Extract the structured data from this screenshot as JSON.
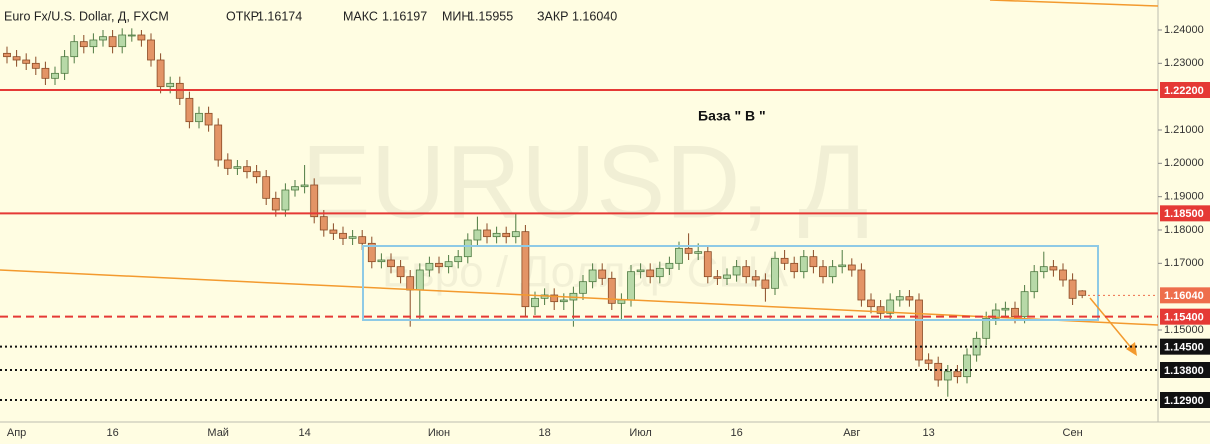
{
  "chart_data": {
    "type": "candlestick",
    "title": "Euro Fx/U.S. Dollar, Д, FXCM",
    "ohlc_header": [
      {
        "label": "ОТКР",
        "value": "1.16174"
      },
      {
        "label": "МАКС",
        "value": "1.16197"
      },
      {
        "label": "МИН",
        "value": "1.15955"
      },
      {
        "label": "ЗАКР",
        "value": "1.16040"
      }
    ],
    "watermark": "EURUSD, Д",
    "watermark_subtitle": "Евро / Доллар США",
    "annotation": "База \" В \"",
    "categories": [
      null,
      "Апр",
      null,
      null,
      null,
      null,
      null,
      null,
      null,
      null,
      null,
      "16",
      null,
      null,
      null,
      null,
      null,
      null,
      null,
      null,
      null,
      null,
      "Май",
      null,
      null,
      null,
      null,
      null,
      null,
      null,
      null,
      "14",
      null,
      null,
      null,
      null,
      null,
      null,
      null,
      null,
      null,
      null,
      null,
      null,
      null,
      "Июн",
      null,
      null,
      null,
      null,
      null,
      null,
      null,
      null,
      null,
      null,
      "18",
      null,
      null,
      null,
      null,
      null,
      null,
      null,
      null,
      null,
      "Июл",
      null,
      null,
      null,
      null,
      null,
      null,
      null,
      null,
      null,
      "16",
      null,
      null,
      null,
      null,
      null,
      null,
      null,
      null,
      null,
      null,
      null,
      "Авг",
      null,
      null,
      null,
      null,
      null,
      null,
      null,
      "13",
      null,
      null,
      null,
      null,
      null,
      null,
      null,
      null,
      null,
      null,
      null,
      null,
      null,
      null,
      "Сен",
      null
    ],
    "open": [
      1.233,
      1.232,
      1.231,
      1.23,
      1.2285,
      1.2255,
      1.227,
      1.232,
      1.2365,
      1.235,
      1.237,
      1.238,
      1.235,
      1.2385,
      1.2385,
      1.237,
      1.231,
      1.223,
      1.224,
      1.2195,
      1.2125,
      1.215,
      1.2115,
      1.201,
      1.1985,
      1.199,
      1.1975,
      1.196,
      1.1895,
      1.186,
      1.192,
      1.193,
      1.1935,
      1.184,
      1.18,
      1.179,
      1.1775,
      1.178,
      1.176,
      1.1705,
      1.171,
      1.169,
      1.166,
      1.162,
      1.168,
      1.17,
      1.169,
      1.1705,
      1.172,
      1.177,
      1.18,
      1.178,
      1.179,
      1.178,
      1.1795,
      1.157,
      1.1595,
      1.1605,
      1.1585,
      1.159,
      1.161,
      1.1645,
      1.168,
      1.1655,
      1.158,
      1.159,
      1.1675,
      1.168,
      1.166,
      1.1685,
      1.17,
      1.1745,
      1.173,
      1.1735,
      1.166,
      1.1655,
      1.1665,
      1.169,
      1.166,
      1.165,
      1.1625,
      1.1715,
      1.17,
      1.1675,
      1.172,
      1.169,
      1.166,
      1.169,
      1.1695,
      1.168,
      1.159,
      1.157,
      1.155,
      1.159,
      1.16,
      1.159,
      1.141,
      1.14,
      1.135,
      1.1375,
      1.136,
      1.1425,
      1.1475,
      1.1535,
      1.156,
      1.1565,
      1.154,
      1.1615,
      1.1675,
      1.169,
      1.168,
      1.165,
      1.16174
    ],
    "high": [
      1.235,
      1.234,
      1.233,
      1.232,
      1.2305,
      1.229,
      1.234,
      1.2385,
      1.2385,
      1.239,
      1.24,
      1.24,
      1.2405,
      1.2405,
      1.24,
      1.239,
      1.233,
      1.226,
      1.226,
      1.2215,
      1.217,
      1.217,
      1.2135,
      1.203,
      1.201,
      1.201,
      1.1995,
      1.198,
      1.1915,
      1.194,
      1.195,
      1.1995,
      1.1955,
      1.186,
      1.182,
      1.181,
      1.18,
      1.18,
      1.178,
      1.173,
      1.173,
      1.171,
      1.168,
      1.17,
      1.172,
      1.172,
      1.1725,
      1.174,
      1.179,
      1.184,
      1.182,
      1.181,
      1.181,
      1.185,
      1.1815,
      1.1615,
      1.1625,
      1.1625,
      1.161,
      1.163,
      1.1665,
      1.17,
      1.17,
      1.1675,
      1.161,
      1.1695,
      1.17,
      1.17,
      1.1705,
      1.172,
      1.1765,
      1.179,
      1.176,
      1.1755,
      1.168,
      1.1685,
      1.171,
      1.171,
      1.168,
      1.167,
      1.1735,
      1.174,
      1.172,
      1.174,
      1.174,
      1.171,
      1.171,
      1.174,
      1.1715,
      1.17,
      1.161,
      1.159,
      1.161,
      1.162,
      1.162,
      1.161,
      1.143,
      1.142,
      1.1395,
      1.1395,
      1.1445,
      1.1495,
      1.1555,
      1.158,
      1.1585,
      1.1585,
      1.1635,
      1.1695,
      1.1735,
      1.171,
      1.17,
      1.167,
      1.16197
    ],
    "low": [
      1.23,
      1.229,
      1.228,
      1.2265,
      1.2235,
      1.2235,
      1.225,
      1.23,
      1.233,
      1.233,
      1.235,
      1.233,
      1.233,
      1.2365,
      1.235,
      1.229,
      1.221,
      1.221,
      1.2175,
      1.2105,
      1.2105,
      1.2095,
      1.199,
      1.1965,
      1.1965,
      1.1955,
      1.194,
      1.1875,
      1.184,
      1.184,
      1.19,
      1.191,
      1.182,
      1.178,
      1.177,
      1.1755,
      1.1755,
      1.174,
      1.1685,
      1.1685,
      1.167,
      1.164,
      1.151,
      1.153,
      1.166,
      1.167,
      1.167,
      1.1685,
      1.17,
      1.175,
      1.176,
      1.176,
      1.176,
      1.176,
      1.154,
      1.1545,
      1.1575,
      1.156,
      1.156,
      1.151,
      1.159,
      1.1625,
      1.1635,
      1.156,
      1.153,
      1.157,
      1.1655,
      1.164,
      1.164,
      1.1665,
      1.168,
      1.171,
      1.171,
      1.164,
      1.1635,
      1.1635,
      1.1645,
      1.164,
      1.163,
      1.1585,
      1.1605,
      1.168,
      1.1655,
      1.1655,
      1.167,
      1.164,
      1.164,
      1.167,
      1.166,
      1.157,
      1.155,
      1.153,
      1.153,
      1.157,
      1.157,
      1.139,
      1.138,
      1.133,
      1.13,
      1.134,
      1.134,
      1.1405,
      1.1455,
      1.1515,
      1.154,
      1.152,
      1.152,
      1.1595,
      1.1655,
      1.166,
      1.163,
      1.1575,
      1.15955
    ],
    "close": [
      1.232,
      1.231,
      1.23,
      1.2285,
      1.2255,
      1.227,
      1.232,
      1.2365,
      1.235,
      1.237,
      1.238,
      1.235,
      1.2385,
      1.2385,
      1.237,
      1.231,
      1.223,
      1.224,
      1.2195,
      1.2125,
      1.215,
      1.2115,
      1.201,
      1.1985,
      1.199,
      1.1975,
      1.196,
      1.1895,
      1.186,
      1.192,
      1.193,
      1.1935,
      1.184,
      1.18,
      1.179,
      1.1775,
      1.178,
      1.176,
      1.1705,
      1.171,
      1.169,
      1.166,
      1.162,
      1.168,
      1.17,
      1.169,
      1.1705,
      1.172,
      1.177,
      1.18,
      1.178,
      1.179,
      1.178,
      1.1795,
      1.157,
      1.1595,
      1.1605,
      1.1585,
      1.159,
      1.161,
      1.1645,
      1.168,
      1.1655,
      1.158,
      1.159,
      1.1675,
      1.168,
      1.166,
      1.1685,
      1.17,
      1.1745,
      1.173,
      1.1735,
      1.166,
      1.1655,
      1.1665,
      1.169,
      1.166,
      1.165,
      1.1625,
      1.1715,
      1.17,
      1.1675,
      1.172,
      1.169,
      1.166,
      1.169,
      1.1695,
      1.168,
      1.159,
      1.157,
      1.155,
      1.159,
      1.16,
      1.159,
      1.141,
      1.14,
      1.135,
      1.1375,
      1.136,
      1.1425,
      1.1475,
      1.1535,
      1.156,
      1.1565,
      1.154,
      1.1615,
      1.1675,
      1.169,
      1.168,
      1.165,
      1.1595,
      1.1604
    ],
    "up_color": "#b7d9a8",
    "down_color": "#e39466",
    "ylim": [
      1.123,
      1.249
    ],
    "yticks": [
      {
        "value": 1.24,
        "label": "1.24000"
      },
      {
        "value": 1.23,
        "label": "1.23000"
      },
      {
        "value": 1.21,
        "label": "1.21000"
      },
      {
        "value": 1.2,
        "label": "1.20000"
      },
      {
        "value": 1.19,
        "label": "1.19000"
      },
      {
        "value": 1.18,
        "label": "1.18000"
      },
      {
        "value": 1.17,
        "label": "1.17000"
      },
      {
        "value": 1.15,
        "label": "1.15000"
      }
    ],
    "levels": [
      {
        "value": 1.222,
        "label": "1.22200",
        "color": "#e53935",
        "style": "solid"
      },
      {
        "value": 1.185,
        "label": "1.18500",
        "color": "#e53935",
        "style": "solid"
      },
      {
        "value": 1.154,
        "label": "1.15400",
        "color": "#e53935",
        "style": "dashed"
      },
      {
        "value": 1.145,
        "label": "1.14500",
        "color": "#111111",
        "style": "dotted"
      },
      {
        "value": 1.138,
        "label": "1.13800",
        "color": "#111111",
        "style": "dotted"
      },
      {
        "value": 1.129,
        "label": "1.12900",
        "color": "#111111",
        "style": "dotted"
      }
    ],
    "last_price": {
      "value": 1.1604,
      "label": "1.16040",
      "color": "#ee6e4c"
    }
  }
}
